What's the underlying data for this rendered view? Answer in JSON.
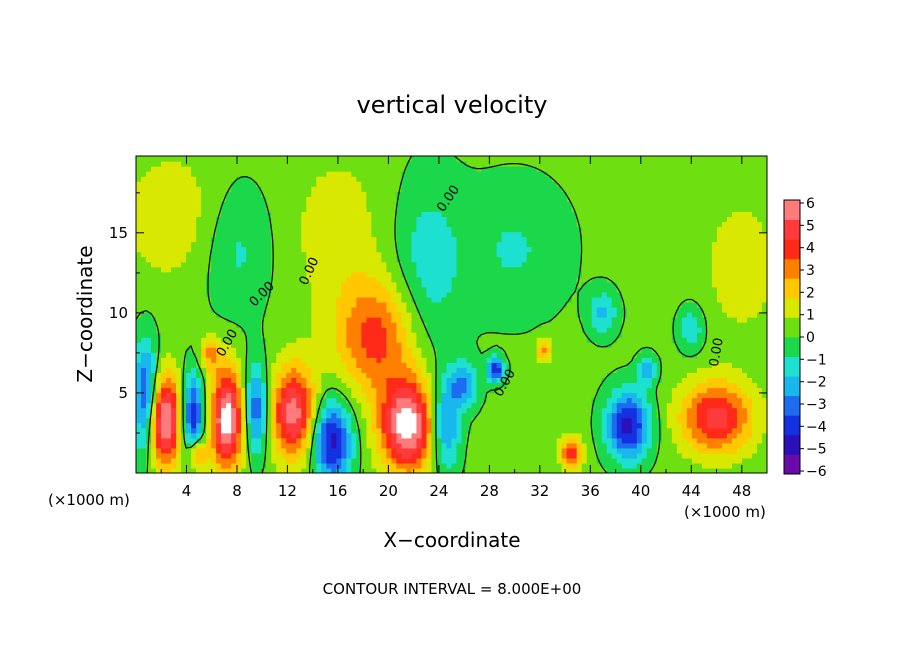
{
  "chart_data": {
    "type": "heatmap",
    "title": "vertical velocity",
    "xlabel": "X−coordinate",
    "ylabel": "Z−coordinate",
    "x_unit_left": "(×1000 m)",
    "x_unit_right": "(×1000 m)",
    "footer": "CONTOUR INTERVAL = 8.000E+00",
    "xlim": [
      0,
      50
    ],
    "ylim": [
      0,
      19.8
    ],
    "x_ticks": [
      "4",
      "8",
      "12",
      "16",
      "20",
      "24",
      "28",
      "32",
      "36",
      "40",
      "44",
      "48"
    ],
    "y_ticks": [
      "5",
      "10",
      "15"
    ],
    "contour_label": "0.00",
    "colorbar": {
      "vmin": -6,
      "vmax": 6,
      "tick_labels": [
        "6",
        "5",
        "4",
        "3",
        "2",
        "1",
        "0",
        "−1",
        "−2",
        "−3",
        "−4",
        "−5",
        "−6"
      ],
      "colors": [
        "#6a0aa8",
        "#2a10b8",
        "#1530e0",
        "#1d6cf0",
        "#18b8ec",
        "#1de0d0",
        "#1ad84a",
        "#6ee012",
        "#d8e800",
        "#ffc800",
        "#ff8000",
        "#ff2a18",
        "#ff3a3a",
        "#ff7a7a"
      ]
    },
    "field_features": [
      {
        "x": 2.2,
        "z": 3.3,
        "amp": 6.5,
        "sx": 1.0,
        "sz": 2.0
      },
      {
        "x": 7.2,
        "z": 3.4,
        "amp": 6.5,
        "sx": 0.9,
        "sz": 2.2
      },
      {
        "x": 12.5,
        "z": 3.8,
        "amp": 5.5,
        "sx": 1.2,
        "sz": 2.0
      },
      {
        "x": 21.5,
        "z": 3.0,
        "amp": 6.5,
        "sx": 1.5,
        "sz": 2.0
      },
      {
        "x": 19.0,
        "z": 8.5,
        "amp": 3.5,
        "sx": 2.2,
        "sz": 2.5
      },
      {
        "x": 46.0,
        "z": 3.5,
        "amp": 4.5,
        "sx": 2.0,
        "sz": 1.6
      },
      {
        "x": 4.8,
        "z": 1.2,
        "amp": 4.0,
        "sx": 0.5,
        "sz": 0.8
      },
      {
        "x": 34.5,
        "z": 1.3,
        "amp": 4.0,
        "sx": 0.6,
        "sz": 0.7
      },
      {
        "x": 32.3,
        "z": 7.7,
        "amp": 3.0,
        "sx": 0.4,
        "sz": 0.5
      },
      {
        "x": 5.8,
        "z": 7.5,
        "amp": 2.5,
        "sx": 0.6,
        "sz": 0.8
      },
      {
        "x": 0.8,
        "z": 4.5,
        "amp": -5.0,
        "sx": 0.7,
        "sz": 2.5
      },
      {
        "x": 4.5,
        "z": 3.5,
        "amp": -5.0,
        "sx": 0.6,
        "sz": 2.0
      },
      {
        "x": 9.5,
        "z": 4.0,
        "amp": -4.0,
        "sx": 0.6,
        "sz": 2.0
      },
      {
        "x": 15.5,
        "z": 2.0,
        "amp": -5.0,
        "sx": 1.1,
        "sz": 1.8
      },
      {
        "x": 24.5,
        "z": 3.0,
        "amp": -3.5,
        "sx": 0.8,
        "sz": 2.0
      },
      {
        "x": 28.5,
        "z": 6.5,
        "amp": -5.5,
        "sx": 0.4,
        "sz": 0.5
      },
      {
        "x": 39.0,
        "z": 3.0,
        "amp": -5.0,
        "sx": 1.2,
        "sz": 1.5
      },
      {
        "x": 40.5,
        "z": 6.5,
        "amp": -3.0,
        "sx": 0.5,
        "sz": 0.6
      },
      {
        "x": 26.0,
        "z": 5.5,
        "amp": -3.0,
        "sx": 0.8,
        "sz": 1.0
      },
      {
        "x": 37.0,
        "z": 10.0,
        "amp": -2.2,
        "sx": 0.8,
        "sz": 1.0
      },
      {
        "x": 44.0,
        "z": 9.0,
        "amp": -2.0,
        "sx": 0.7,
        "sz": 1.0
      },
      {
        "x": 23.0,
        "z": 13.0,
        "amp": -1.6,
        "sx": 2.0,
        "sz": 4.0
      },
      {
        "x": 8.0,
        "z": 14.0,
        "amp": -1.4,
        "sx": 2.0,
        "sz": 3.0
      },
      {
        "x": 30.0,
        "z": 14.0,
        "amp": -1.2,
        "sx": 3.0,
        "sz": 3.0
      },
      {
        "x": 3.0,
        "z": 16.0,
        "amp": 1.2,
        "sx": 3.0,
        "sz": 3.0
      },
      {
        "x": 16.0,
        "z": 15.0,
        "amp": 1.0,
        "sx": 3.0,
        "sz": 4.0
      },
      {
        "x": 48.0,
        "z": 13.0,
        "amp": 1.2,
        "sx": 2.0,
        "sz": 3.0
      }
    ]
  }
}
